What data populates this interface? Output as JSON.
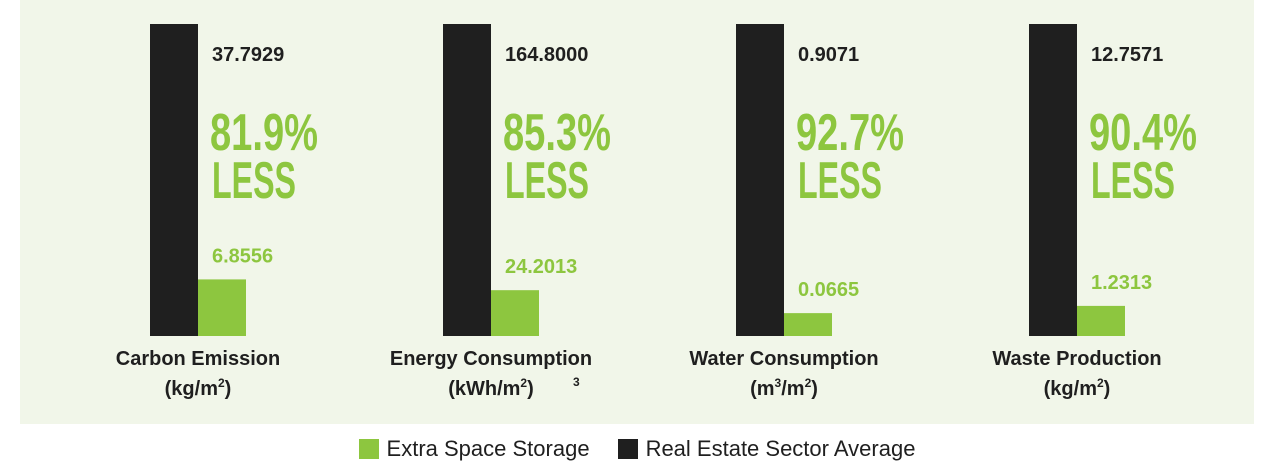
{
  "colors": {
    "green": "#8dc63f",
    "dark": "#1f1f1f",
    "panel": "#f1f6e9"
  },
  "chart_data": {
    "type": "bar",
    "categories": [
      {
        "name": "Carbon Emission",
        "unit_pre": "(kg/m",
        "unit_sup": "2",
        "unit_post": ")",
        "note": ""
      },
      {
        "name": "Energy Consumption",
        "unit_pre": "(kWh/m",
        "unit_sup": "2",
        "unit_post": ")",
        "note": "3"
      },
      {
        "name": "Water Consumption",
        "unit_pre": "(m",
        "unit_sup": "3",
        "unit_mid": "/m",
        "unit_sup2": "2",
        "unit_post": ")",
        "note": ""
      },
      {
        "name": "Waste Production",
        "unit_pre": "(kg/m",
        "unit_sup": "2",
        "unit_post": ")",
        "note": ""
      }
    ],
    "series": [
      {
        "name": "Real Estate Sector Average",
        "color": "#1f1f1f",
        "values": [
          37.7929,
          164.8,
          0.9071,
          12.7571
        ],
        "labels": [
          "37.7929",
          "164.8000",
          "0.9071",
          "12.7571"
        ]
      },
      {
        "name": "Extra Space Storage",
        "color": "#8dc63f",
        "values": [
          6.8556,
          24.2013,
          0.0665,
          1.2313
        ],
        "labels": [
          "6.8556",
          "24.2013",
          "0.0665",
          "1.2313"
        ]
      }
    ],
    "reductions": [
      "81.9%",
      "85.3%",
      "92.7%",
      "90.4%"
    ],
    "reduction_word": "LESS",
    "legend": [
      "Extra Space Storage",
      "Real Estate Sector Average"
    ],
    "legend_position": "bottom"
  }
}
